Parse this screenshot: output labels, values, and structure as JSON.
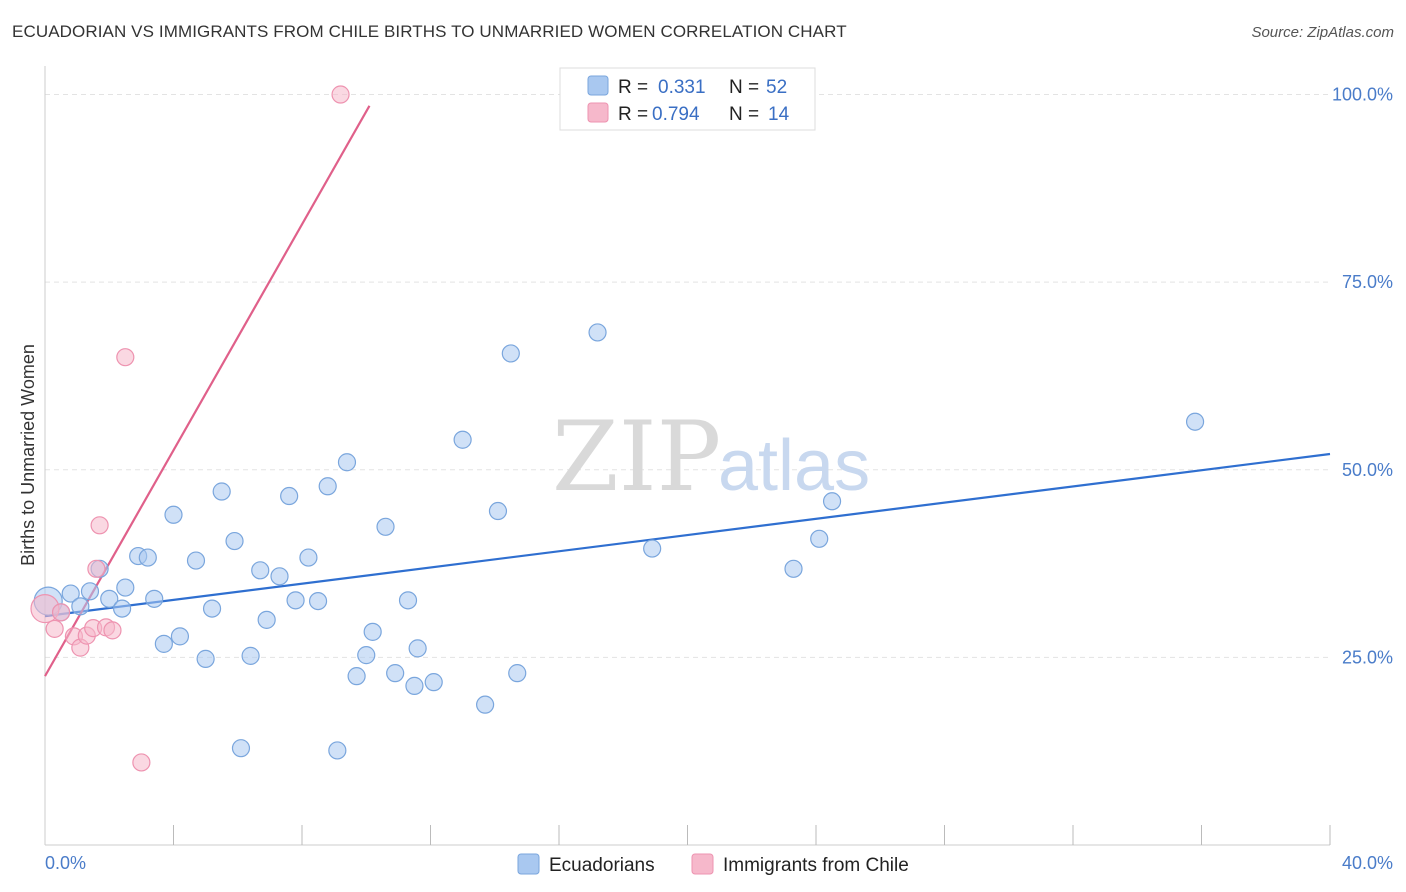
{
  "title": "ECUADORIAN VS IMMIGRANTS FROM CHILE BIRTHS TO UNMARRIED WOMEN CORRELATION CHART",
  "source": "Source: ZipAtlas.com",
  "watermark": {
    "zip": "ZIP",
    "atlas": "atlas"
  },
  "colors": {
    "blue_fill": "#a9c8f0",
    "blue_stroke": "#7aa6dd",
    "blue_line": "#2f6fd0",
    "pink_fill": "#f6b8cb",
    "pink_stroke": "#ee93b0",
    "pink_line": "#e0608a",
    "grid": "#e3e3e3",
    "axis_text": "#4a7cc9"
  },
  "legend": {
    "rows": [
      {
        "r_label": "R = ",
        "r_value": "0.331",
        "n_label": "N = ",
        "n_value": "52"
      },
      {
        "r_label": "R = ",
        "r_value": "0.794",
        "n_label": "N = ",
        "n_value": "14"
      }
    ]
  },
  "chart_data": {
    "type": "scatter",
    "title": "ECUADORIAN VS IMMIGRANTS FROM CHILE BIRTHS TO UNMARRIED WOMEN CORRELATION CHART",
    "xlabel": "",
    "ylabel": "Births to Unmarried Women",
    "xlim": [
      0,
      40
    ],
    "ylim": [
      0,
      103
    ],
    "x_tick_labels": [
      {
        "value": 0,
        "label": "0.0%"
      },
      {
        "value": 40,
        "label": "40.0%"
      }
    ],
    "x_minor_ticks": [
      4,
      8,
      12,
      16,
      20,
      24,
      28,
      32,
      36,
      40
    ],
    "y_ticks": [
      {
        "value": 25,
        "label": "25.0%"
      },
      {
        "value": 50,
        "label": "50.0%"
      },
      {
        "value": 75,
        "label": "75.0%"
      },
      {
        "value": 100,
        "label": "100.0%"
      }
    ],
    "series": [
      {
        "name": "Ecuadorians",
        "color": "blue",
        "trend": {
          "x0": 0,
          "y0": 30.5,
          "x1": 40,
          "y1": 52.1
        },
        "points": [
          [
            0.1,
            32.5
          ],
          [
            0.5,
            31.0
          ],
          [
            0.8,
            33.5
          ],
          [
            1.1,
            31.8
          ],
          [
            1.4,
            33.8
          ],
          [
            1.7,
            36.8
          ],
          [
            2.0,
            32.8
          ],
          [
            2.4,
            31.5
          ],
          [
            2.5,
            34.3
          ],
          [
            2.9,
            38.5
          ],
          [
            3.2,
            38.3
          ],
          [
            3.4,
            32.8
          ],
          [
            3.7,
            26.8
          ],
          [
            4.0,
            44.0
          ],
          [
            4.2,
            27.8
          ],
          [
            4.7,
            37.9
          ],
          [
            5.0,
            24.8
          ],
          [
            5.2,
            31.5
          ],
          [
            5.5,
            47.1
          ],
          [
            5.9,
            40.5
          ],
          [
            6.1,
            12.9
          ],
          [
            6.4,
            25.2
          ],
          [
            6.7,
            36.6
          ],
          [
            6.9,
            30.0
          ],
          [
            7.3,
            35.8
          ],
          [
            7.6,
            46.5
          ],
          [
            7.8,
            32.6
          ],
          [
            8.2,
            38.3
          ],
          [
            8.5,
            32.5
          ],
          [
            8.8,
            47.8
          ],
          [
            9.1,
            12.6
          ],
          [
            9.4,
            51.0
          ],
          [
            9.7,
            22.5
          ],
          [
            10.0,
            25.3
          ],
          [
            10.2,
            28.4
          ],
          [
            10.6,
            42.4
          ],
          [
            10.9,
            22.9
          ],
          [
            11.3,
            32.6
          ],
          [
            11.5,
            21.2
          ],
          [
            11.6,
            26.2
          ],
          [
            12.1,
            21.7
          ],
          [
            13.0,
            54.0
          ],
          [
            13.7,
            18.7
          ],
          [
            14.1,
            44.5
          ],
          [
            14.5,
            65.5
          ],
          [
            14.7,
            22.9
          ],
          [
            17.2,
            68.3
          ],
          [
            18.9,
            39.5
          ],
          [
            23.3,
            36.8
          ],
          [
            24.1,
            40.8
          ],
          [
            24.5,
            45.8
          ],
          [
            35.8,
            56.4
          ]
        ]
      },
      {
        "name": "Immigrants from Chile",
        "color": "pink",
        "trend": {
          "x0": 0,
          "y0": 22.5,
          "x1": 10.1,
          "y1": 98.5
        },
        "points": [
          [
            0.0,
            31.5
          ],
          [
            0.3,
            28.8
          ],
          [
            0.5,
            31.0
          ],
          [
            0.9,
            27.8
          ],
          [
            1.1,
            26.3
          ],
          [
            1.3,
            27.9
          ],
          [
            1.5,
            28.9
          ],
          [
            1.6,
            36.8
          ],
          [
            1.7,
            42.6
          ],
          [
            1.9,
            29.0
          ],
          [
            2.1,
            28.6
          ],
          [
            2.5,
            65.0
          ],
          [
            3.0,
            11.0
          ],
          [
            9.2,
            100.0
          ]
        ]
      }
    ]
  }
}
